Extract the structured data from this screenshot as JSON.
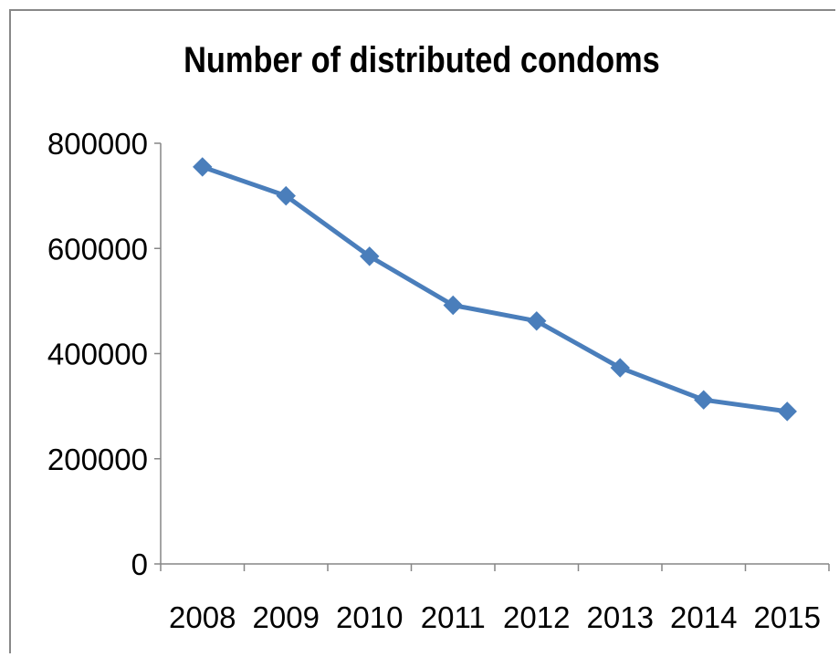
{
  "chart_data": {
    "type": "line",
    "title": "Number of distributed condoms",
    "categories": [
      "2008",
      "2009",
      "2010",
      "2011",
      "2012",
      "2013",
      "2014",
      "2015"
    ],
    "series": [
      {
        "values": [
          755000,
          700000,
          585000,
          492000,
          462000,
          373000,
          312000,
          290000
        ]
      }
    ],
    "ylim": [
      0,
      800000
    ],
    "yticks": [
      "0",
      "200000",
      "400000",
      "600000",
      "800000"
    ],
    "grid": false,
    "legend": "none",
    "line_color": "#4a7ebb",
    "marker": "diamond"
  }
}
